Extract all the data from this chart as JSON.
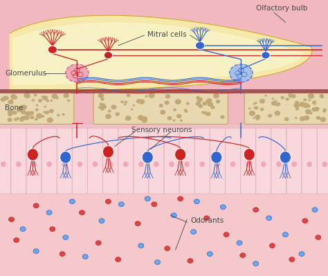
{
  "bg_color": "#f2b8c0",
  "bulb_fill": "#f5e8a8",
  "bulb_inner": "#faf5d0",
  "bulb_edge": "#c8a030",
  "dark_band_color": "#8b3535",
  "bone_fill": "#e8d8b0",
  "bone_edge": "#c8a870",
  "bone_texture": "#c0a878",
  "epi_bg": "#f0c0c8",
  "cell_fill": "#f8d8dc",
  "cell_edge": "#e0b0b8",
  "cell_nucleus": "#f0a8b8",
  "bottom_bg": "#f5c8cc",
  "red_color": "#cc2222",
  "blue_color": "#3366cc",
  "red_glom_fill": "#f0a8b8",
  "red_glom_edge": "#cc6688",
  "blue_glom_fill": "#a8c0e8",
  "blue_glom_edge": "#5577cc",
  "red_odorant": "#dd4444",
  "blue_odorant": "#66aaee",
  "label_color": "#444444",
  "label_fs": 7.5,
  "labels": {
    "olfactory_bulb": "Olfactory bulb",
    "mitral_cells": "Mitral cells",
    "glomerulus": "Glomerulus",
    "bone": "Bone",
    "sensory_neurons": "Sensory neurons",
    "odorants": "Odorants"
  }
}
